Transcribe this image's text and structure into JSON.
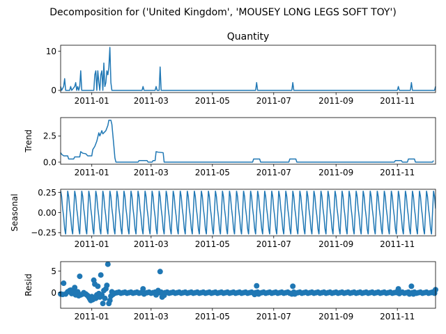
{
  "figure": {
    "suptitle": "Decomposition for ('United Kingdom', 'MOUSEY LONG LEGS SOFT TOY')"
  },
  "chart_data": [
    {
      "type": "line",
      "name": "quantity",
      "title": "Quantity",
      "ylabel": "",
      "xlim": [
        "2010-12-01",
        "2011-12-09"
      ],
      "ylim": [
        -0.55,
        11.55
      ],
      "yticks": [
        0,
        10
      ],
      "xticks": [
        "2011-01",
        "2011-03",
        "2011-05",
        "2011-07",
        "2011-09",
        "2011-11"
      ],
      "series": [
        {
          "points": [
            [
              "2010-12-01",
              1
            ],
            [
              "2010-12-02",
              0
            ],
            [
              "2010-12-04",
              1
            ],
            [
              "2010-12-05",
              3
            ],
            [
              "2010-12-06",
              0
            ],
            [
              "2010-12-10",
              0
            ],
            [
              "2010-12-11",
              1
            ],
            [
              "2010-12-12",
              0
            ],
            [
              "2010-12-15",
              1
            ],
            [
              "2010-12-16",
              2
            ],
            [
              "2010-12-17",
              0
            ],
            [
              "2010-12-18",
              1
            ],
            [
              "2010-12-19",
              0
            ],
            [
              "2010-12-20",
              1
            ],
            [
              "2010-12-21",
              5
            ],
            [
              "2010-12-22",
              0
            ],
            [
              "2011-01-03",
              0
            ],
            [
              "2011-01-04",
              4
            ],
            [
              "2011-01-05",
              5
            ],
            [
              "2011-01-06",
              0
            ],
            [
              "2011-01-07",
              5
            ],
            [
              "2011-01-08",
              2
            ],
            [
              "2011-01-09",
              0
            ],
            [
              "2011-01-10",
              4
            ],
            [
              "2011-01-11",
              5
            ],
            [
              "2011-01-12",
              0
            ],
            [
              "2011-01-13",
              7
            ],
            [
              "2011-01-14",
              1
            ],
            [
              "2011-01-15",
              2
            ],
            [
              "2011-01-16",
              5
            ],
            [
              "2011-01-17",
              4
            ],
            [
              "2011-01-18",
              6
            ],
            [
              "2011-01-19",
              11
            ],
            [
              "2011-01-20",
              2
            ],
            [
              "2011-01-21",
              0
            ],
            [
              "2011-02-20",
              0
            ],
            [
              "2011-02-21",
              1
            ],
            [
              "2011-02-22",
              0
            ],
            [
              "2011-03-05",
              0
            ],
            [
              "2011-03-06",
              1
            ],
            [
              "2011-03-07",
              0
            ],
            [
              "2011-03-09",
              0
            ],
            [
              "2011-03-10",
              6
            ],
            [
              "2011-03-11",
              0
            ],
            [
              "2011-06-13",
              0
            ],
            [
              "2011-06-14",
              2
            ],
            [
              "2011-06-15",
              0
            ],
            [
              "2011-07-19",
              0
            ],
            [
              "2011-07-20",
              2
            ],
            [
              "2011-07-21",
              0
            ],
            [
              "2011-11-01",
              0
            ],
            [
              "2011-11-02",
              1
            ],
            [
              "2011-11-03",
              0
            ],
            [
              "2011-11-14",
              0
            ],
            [
              "2011-11-15",
              2
            ],
            [
              "2011-11-16",
              0
            ],
            [
              "2011-12-08",
              0
            ],
            [
              "2011-12-09",
              1
            ]
          ]
        }
      ]
    },
    {
      "type": "line",
      "name": "trend",
      "title": "",
      "ylabel": "Trend",
      "xlim": [
        "2010-12-01",
        "2011-12-09"
      ],
      "ylim": [
        -0.2,
        4.25
      ],
      "yticks": [
        0.0,
        2.5
      ],
      "yticklabels": [
        "0.0",
        "2.5"
      ],
      "xticks": [
        "2011-01",
        "2011-03",
        "2011-05",
        "2011-07",
        "2011-09",
        "2011-11"
      ],
      "series": [
        {
          "points": [
            [
              "2010-12-01",
              0.9
            ],
            [
              "2010-12-02",
              0.75
            ],
            [
              "2010-12-04",
              0.6
            ],
            [
              "2010-12-08",
              0.6
            ],
            [
              "2010-12-09",
              0.3
            ],
            [
              "2010-12-14",
              0.3
            ],
            [
              "2010-12-15",
              0.5
            ],
            [
              "2010-12-20",
              0.5
            ],
            [
              "2010-12-21",
              1.0
            ],
            [
              "2010-12-23",
              0.85
            ],
            [
              "2010-12-26",
              0.8
            ],
            [
              "2010-12-28",
              0.6
            ],
            [
              "2011-01-01",
              0.6
            ],
            [
              "2011-01-02",
              1.2
            ],
            [
              "2011-01-04",
              1.5
            ],
            [
              "2011-01-06",
              2.0
            ],
            [
              "2011-01-08",
              2.8
            ],
            [
              "2011-01-09",
              2.5
            ],
            [
              "2011-01-11",
              3.0
            ],
            [
              "2011-01-12",
              2.7
            ],
            [
              "2011-01-15",
              3.0
            ],
            [
              "2011-01-17",
              3.5
            ],
            [
              "2011-01-18",
              4.0
            ],
            [
              "2011-01-20",
              4.0
            ],
            [
              "2011-01-21",
              3.6
            ],
            [
              "2011-01-23",
              1.5
            ],
            [
              "2011-01-24",
              0.4
            ],
            [
              "2011-01-25",
              0.0
            ],
            [
              "2011-02-16",
              0.0
            ],
            [
              "2011-02-17",
              0.15
            ],
            [
              "2011-02-25",
              0.15
            ],
            [
              "2011-02-26",
              0.0
            ],
            [
              "2011-03-02",
              0.0
            ],
            [
              "2011-03-03",
              0.15
            ],
            [
              "2011-03-05",
              0.15
            ],
            [
              "2011-03-06",
              1.0
            ],
            [
              "2011-03-08",
              0.95
            ],
            [
              "2011-03-13",
              0.9
            ],
            [
              "2011-03-14",
              0.0
            ],
            [
              "2011-06-10",
              0.0
            ],
            [
              "2011-06-11",
              0.3
            ],
            [
              "2011-06-17",
              0.3
            ],
            [
              "2011-06-18",
              0.0
            ],
            [
              "2011-07-16",
              0.0
            ],
            [
              "2011-07-17",
              0.3
            ],
            [
              "2011-07-23",
              0.3
            ],
            [
              "2011-07-24",
              0.0
            ],
            [
              "2011-10-29",
              0.0
            ],
            [
              "2011-10-30",
              0.15
            ],
            [
              "2011-11-05",
              0.15
            ],
            [
              "2011-11-06",
              0.0
            ],
            [
              "2011-11-11",
              0.0
            ],
            [
              "2011-11-12",
              0.3
            ],
            [
              "2011-11-18",
              0.3
            ],
            [
              "2011-11-19",
              0.0
            ],
            [
              "2011-12-06",
              0.0
            ],
            [
              "2011-12-07",
              0.15
            ]
          ]
        }
      ]
    },
    {
      "type": "line",
      "name": "seasonal",
      "title": "",
      "ylabel": "Seasonal",
      "xlim": [
        "2010-12-01",
        "2011-12-09"
      ],
      "ylim": [
        -0.29,
        0.29
      ],
      "yticks": [
        -0.25,
        0.0,
        0.25
      ],
      "yticklabels": [
        "−0.25",
        "0.00",
        "0.25"
      ],
      "xticks": [
        "2011-01",
        "2011-03",
        "2011-05",
        "2011-07",
        "2011-09",
        "2011-11"
      ],
      "period_days": 7,
      "pattern": [
        0.27,
        0.2,
        0.05,
        -0.05,
        -0.2,
        -0.27,
        0.0
      ],
      "series": [
        {
          "start": "2010-12-01",
          "end": "2011-12-09"
        }
      ]
    },
    {
      "type": "scatter",
      "name": "resid",
      "title": "",
      "ylabel": "Resid",
      "xlim": [
        "2010-12-01",
        "2011-12-09"
      ],
      "ylim": [
        -3.6,
        7.2
      ],
      "yticks": [
        0,
        5
      ],
      "xticks": [
        "2011-01",
        "2011-03",
        "2011-05",
        "2011-07",
        "2011-09",
        "2011-11"
      ],
      "baseline_resid": 0.0,
      "series": [
        {
          "points": [
            [
              "2010-12-01",
              -0.3
            ],
            [
              "2010-12-03",
              -0.4
            ],
            [
              "2010-12-04",
              2.2
            ],
            [
              "2010-12-06",
              -0.3
            ],
            [
              "2010-12-08",
              0.2
            ],
            [
              "2010-12-10",
              0.5
            ],
            [
              "2010-12-11",
              0.6
            ],
            [
              "2010-12-12",
              -0.2
            ],
            [
              "2010-12-14",
              0.3
            ],
            [
              "2010-12-15",
              1.2
            ],
            [
              "2010-12-16",
              -0.5
            ],
            [
              "2010-12-18",
              0.2
            ],
            [
              "2010-12-19",
              -0.7
            ],
            [
              "2010-12-20",
              3.8
            ],
            [
              "2010-12-21",
              -0.5
            ],
            [
              "2010-12-23",
              -0.3
            ],
            [
              "2010-12-24",
              0.0
            ],
            [
              "2010-12-26",
              -0.3
            ],
            [
              "2010-12-27",
              -0.5
            ],
            [
              "2010-12-28",
              -0.7
            ],
            [
              "2010-12-29",
              -1.0
            ],
            [
              "2010-12-30",
              -1.4
            ],
            [
              "2010-12-31",
              -1.8
            ],
            [
              "2011-01-01",
              -0.9
            ],
            [
              "2011-01-02",
              -1.6
            ],
            [
              "2011-01-03",
              2.9
            ],
            [
              "2011-01-04",
              2.0
            ],
            [
              "2011-01-05",
              -1.3
            ],
            [
              "2011-01-06",
              -0.5
            ],
            [
              "2011-01-07",
              1.5
            ],
            [
              "2011-01-08",
              -0.2
            ],
            [
              "2011-01-09",
              -1.0
            ],
            [
              "2011-01-10",
              4.1
            ],
            [
              "2011-01-11",
              -0.5
            ],
            [
              "2011-01-12",
              -2.5
            ],
            [
              "2011-01-13",
              0.5
            ],
            [
              "2011-01-14",
              -1.3
            ],
            [
              "2011-01-15",
              0.9
            ],
            [
              "2011-01-16",
              1.7
            ],
            [
              "2011-01-17",
              6.6
            ],
            [
              "2011-01-18",
              -2.5
            ],
            [
              "2011-01-19",
              -1.8
            ],
            [
              "2011-01-20",
              -0.8
            ],
            [
              "2011-01-21",
              0.2
            ],
            [
              "2011-01-22",
              -0.4
            ],
            [
              "2011-02-20",
              0.0
            ],
            [
              "2011-02-21",
              0.9
            ],
            [
              "2011-02-22",
              -0.3
            ],
            [
              "2011-03-06",
              -0.5
            ],
            [
              "2011-03-08",
              0.5
            ],
            [
              "2011-03-10",
              4.9
            ],
            [
              "2011-03-12",
              -1.0
            ],
            [
              "2011-03-14",
              -0.6
            ],
            [
              "2011-06-12",
              -0.4
            ],
            [
              "2011-06-14",
              1.6
            ],
            [
              "2011-06-16",
              -0.3
            ],
            [
              "2011-07-19",
              -0.3
            ],
            [
              "2011-07-20",
              1.5
            ],
            [
              "2011-07-22",
              -0.3
            ],
            [
              "2011-11-01",
              0.0
            ],
            [
              "2011-11-02",
              0.9
            ],
            [
              "2011-11-03",
              -0.2
            ],
            [
              "2011-11-13",
              -0.3
            ],
            [
              "2011-11-15",
              1.5
            ],
            [
              "2011-11-17",
              -0.3
            ],
            [
              "2011-12-07",
              0.0
            ],
            [
              "2011-12-09",
              0.7
            ]
          ]
        }
      ]
    }
  ]
}
